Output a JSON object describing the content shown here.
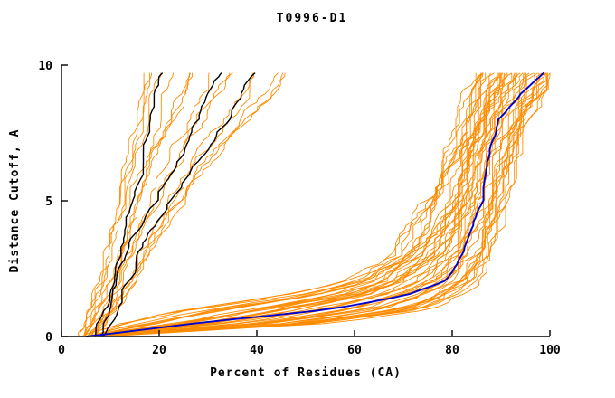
{
  "window": {
    "background": "#ffffff"
  },
  "chart_data": {
    "type": "line",
    "title": "T0996-D1",
    "xlabel": "Percent of Residues (CA)",
    "ylabel": "Distance Cutoff, A",
    "xlim": [
      0,
      100
    ],
    "ylim": [
      0,
      10
    ],
    "x_ticks": [
      0,
      20,
      40,
      60,
      80,
      100
    ],
    "y_ticks": [
      0,
      5,
      10
    ],
    "grid": false,
    "legend": "none",
    "colors": {
      "model_lines": "#ff8c00",
      "highlight_black": "#000000",
      "highlight_blue": "#0000cd",
      "axis": "#000000"
    },
    "y_samples": [
      0,
      0.5,
      1,
      1.5,
      2,
      3,
      4,
      5,
      6,
      7,
      8,
      9,
      9.7
    ],
    "highlight_series": [
      {
        "name": "best-model-blue",
        "color": "#0000cd",
        "width": 1.9,
        "jitter": 0.5,
        "x": [
          5,
          28,
          55,
          70,
          78,
          82,
          84,
          86,
          87,
          88,
          90,
          94,
          99
        ]
      },
      {
        "name": "black-model-1",
        "color": "#000000",
        "width": 1.4,
        "jitter": 0.9,
        "x": [
          7,
          8,
          9,
          10,
          11,
          12,
          13,
          14.5,
          16,
          17,
          18,
          19.5,
          21
        ]
      },
      {
        "name": "black-model-2",
        "color": "#000000",
        "width": 1.4,
        "jitter": 0.9,
        "x": [
          8,
          9,
          10,
          11,
          12,
          14,
          16,
          19,
          22,
          25,
          28,
          31,
          33
        ]
      },
      {
        "name": "black-model-3",
        "color": "#000000",
        "width": 1.4,
        "jitter": 0.9,
        "x": [
          9,
          10,
          11,
          12,
          13.5,
          16,
          19,
          22,
          26,
          30,
          34,
          37,
          39
        ]
      }
    ],
    "clusters": [
      {
        "name": "good-models",
        "color": "#ff8c00",
        "count": 46,
        "width": 0.9,
        "jitter": 2.2,
        "x_min": [
          5,
          12,
          25,
          45,
          58,
          68,
          72,
          75,
          77,
          79,
          81,
          83,
          85
        ],
        "x_max": [
          8,
          55,
          75,
          81,
          84,
          87,
          89,
          90,
          91,
          93,
          95,
          98,
          100
        ]
      },
      {
        "name": "poor-models",
        "color": "#ff8c00",
        "count": 16,
        "width": 0.9,
        "jitter": 1.5,
        "x_min": [
          4,
          5,
          6,
          7,
          8,
          9,
          10,
          11,
          12,
          13,
          14,
          15,
          16
        ],
        "x_max": [
          7,
          9,
          11,
          13,
          15,
          18,
          21,
          25,
          29,
          33,
          38,
          43,
          46
        ]
      }
    ],
    "seed": 7
  }
}
